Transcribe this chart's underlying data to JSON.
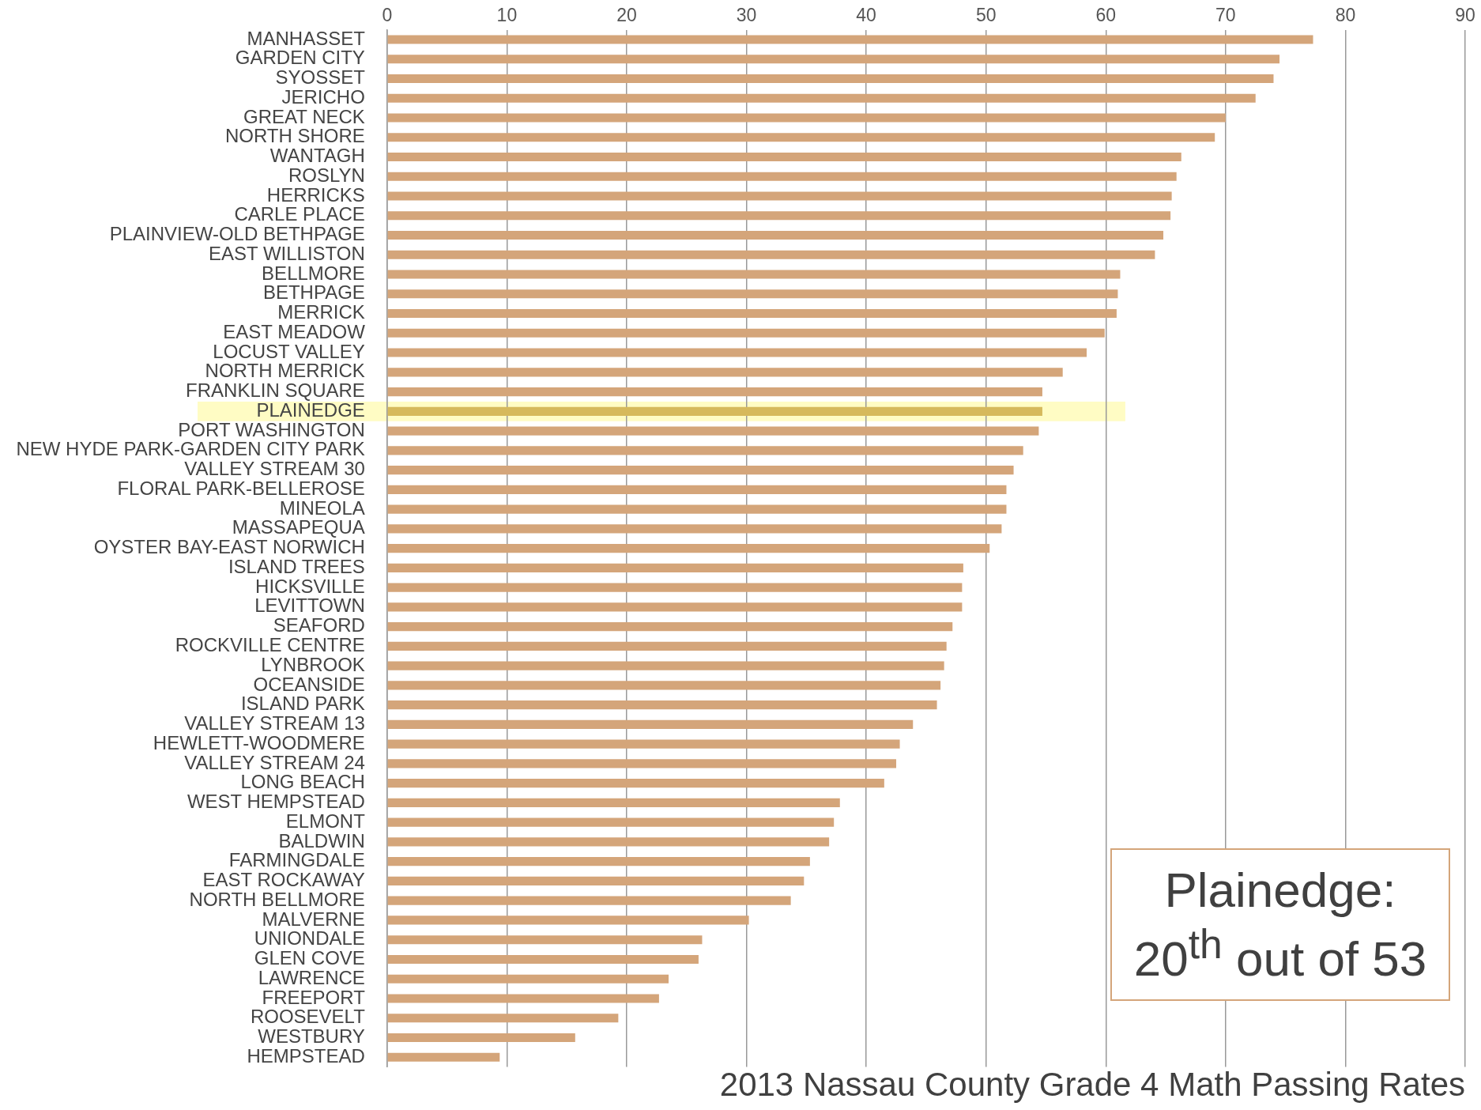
{
  "chart_data": {
    "type": "bar",
    "orientation": "horizontal",
    "title": "2013 Nassau County Grade 4 Math Passing Rates",
    "categories": [
      "MANHASSET",
      "GARDEN CITY",
      "SYOSSET",
      "JERICHO",
      "GREAT NECK",
      "NORTH SHORE",
      "WANTAGH",
      "ROSLYN",
      "HERRICKS",
      "CARLE PLACE",
      "PLAINVIEW-OLD BETHPAGE",
      "EAST WILLISTON",
      "BELLMORE",
      "BETHPAGE",
      "MERRICK",
      "EAST MEADOW",
      "LOCUST VALLEY",
      "NORTH MERRICK",
      "FRANKLIN SQUARE",
      "PLAINEDGE",
      "PORT WASHINGTON",
      "NEW HYDE PARK-GARDEN CITY PARK",
      "VALLEY STREAM 30",
      "FLORAL PARK-BELLEROSE",
      "MINEOLA",
      "MASSAPEQUA",
      "OYSTER BAY-EAST NORWICH",
      "ISLAND TREES",
      "HICKSVILLE",
      "LEVITTOWN",
      "SEAFORD",
      "ROCKVILLE CENTRE",
      "LYNBROOK",
      "OCEANSIDE",
      "ISLAND PARK",
      "VALLEY STREAM 13",
      "HEWLETT-WOODMERE",
      "VALLEY STREAM 24",
      "LONG BEACH",
      "WEST HEMPSTEAD",
      "ELMONT",
      "BALDWIN",
      "FARMINGDALE",
      "EAST ROCKAWAY",
      "NORTH BELLMORE",
      "MALVERNE",
      "UNIONDALE",
      "GLEN COVE",
      "LAWRENCE",
      "FREEPORT",
      "ROOSEVELT",
      "WESTBURY",
      "HEMPSTEAD"
    ],
    "values": [
      77.3,
      74.5,
      74.0,
      72.5,
      70.0,
      69.1,
      66.3,
      65.9,
      65.5,
      65.4,
      64.8,
      64.1,
      61.2,
      61.0,
      60.9,
      59.9,
      58.4,
      56.4,
      54.7,
      54.7,
      54.4,
      53.1,
      52.3,
      51.7,
      51.7,
      51.3,
      50.3,
      48.1,
      48.0,
      48.0,
      47.2,
      46.7,
      46.5,
      46.2,
      45.9,
      43.9,
      42.8,
      42.5,
      41.5,
      37.8,
      37.3,
      36.9,
      35.3,
      34.8,
      33.7,
      30.2,
      26.3,
      26.0,
      23.5,
      22.7,
      19.3,
      15.7,
      9.4
    ],
    "colors": [
      "#d4a57a",
      "#d4a57a",
      "#d4a57a",
      "#d4a57a",
      "#d4a57a",
      "#d4a57a",
      "#d4a57a",
      "#d4a57a",
      "#d4a57a",
      "#d4a57a",
      "#d4a57a",
      "#d4a57a",
      "#d4a57a",
      "#d4a57a",
      "#d4a57a",
      "#d4a57a",
      "#d4a57a",
      "#d4a57a",
      "#d4a57a",
      "#d6b95c",
      "#d4a57a",
      "#d4a57a",
      "#d4a57a",
      "#d4a57a",
      "#d4a57a",
      "#d4a57a",
      "#d4a57a",
      "#d4a57a",
      "#d4a57a",
      "#d4a57a",
      "#d4a57a",
      "#d4a57a",
      "#d4a57a",
      "#d4a57a",
      "#d4a57a",
      "#d4a57a",
      "#d4a57a",
      "#d4a57a",
      "#d4a57a",
      "#d4a57a",
      "#d4a57a",
      "#d4a57a",
      "#d4a57a",
      "#d4a57a",
      "#d4a57a",
      "#d4a57a",
      "#d4a57a",
      "#d4a57a",
      "#d4a57a",
      "#d4a57a",
      "#d4a57a",
      "#d4a57a",
      "#d4a57a"
    ],
    "xlim": [
      0,
      90
    ],
    "xticks": [
      0,
      10,
      20,
      30,
      40,
      50,
      60,
      70,
      80,
      90
    ],
    "grid": "x",
    "legend": false,
    "bands": [
      {
        "axis": "y",
        "from": "PLAINEDGE",
        "to": "PLAINEDGE",
        "color": "#fffbb0"
      }
    ],
    "annotations": [
      "Plainedge: 20$^{th}$ out of 53"
    ]
  }
}
